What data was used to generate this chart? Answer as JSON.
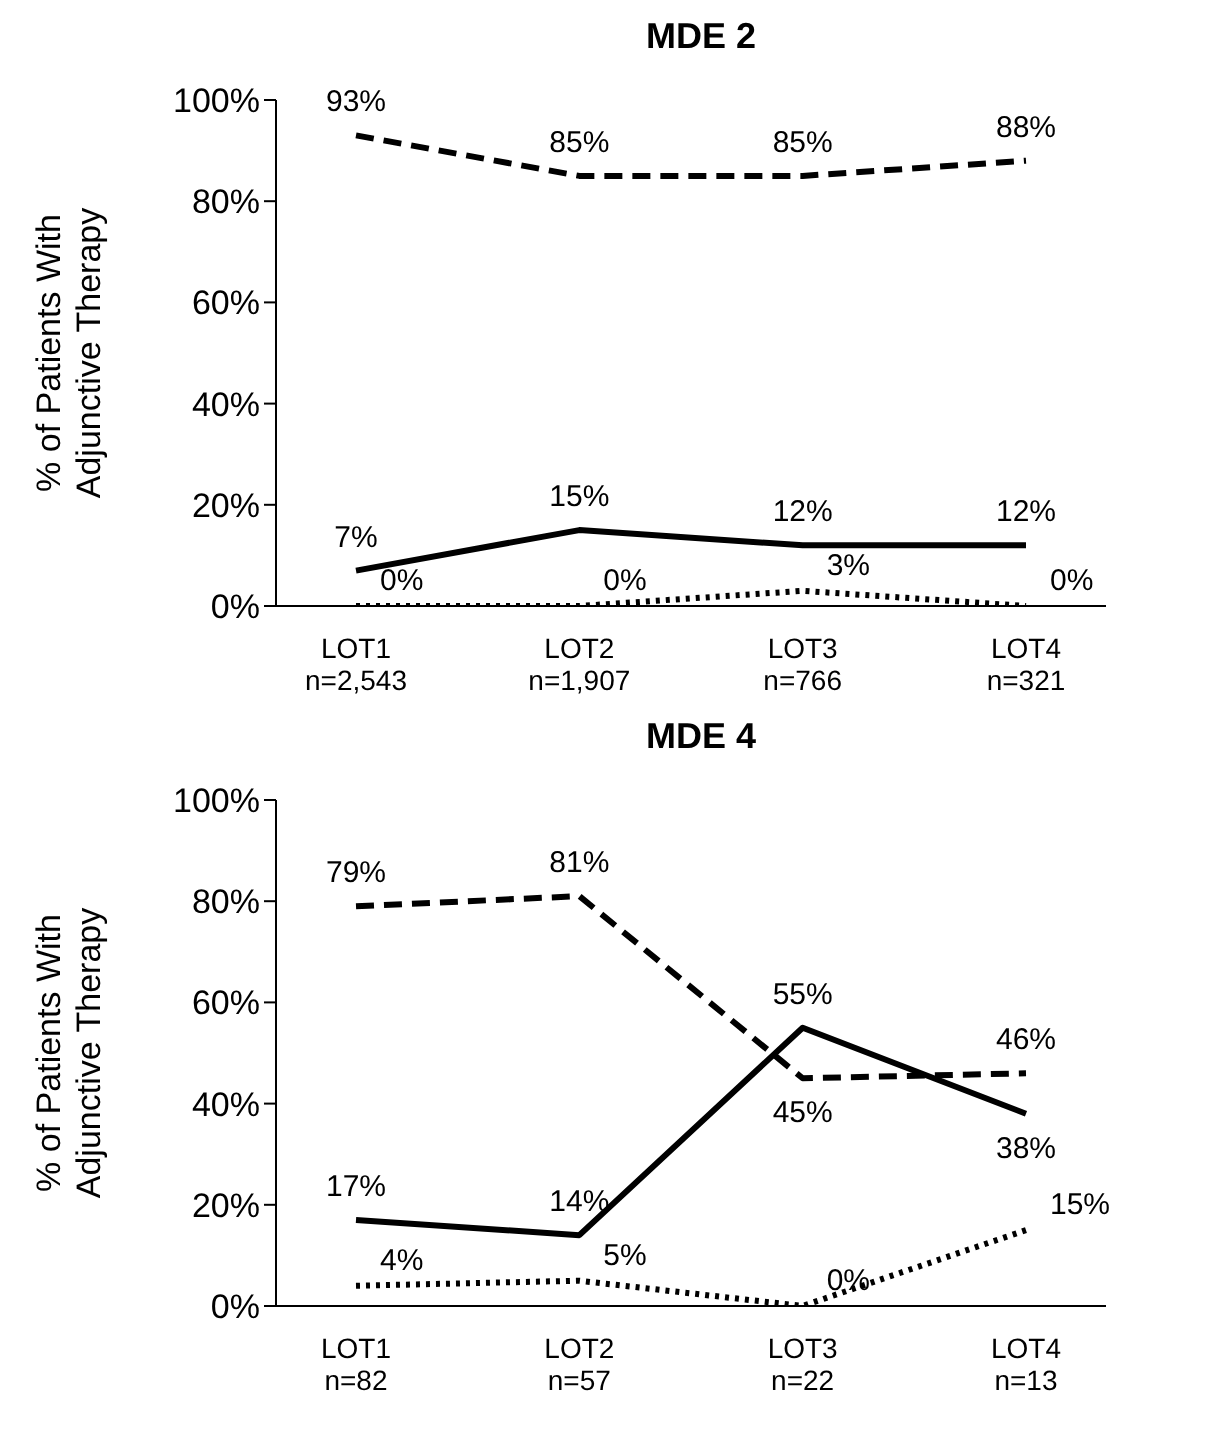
{
  "chart_data": [
    {
      "type": "line",
      "title": "MDE 2",
      "ylabel": "% of Patients With Adjunctive Therapy",
      "categories": [
        "LOT1\nn=2,543",
        "LOT2\nn=1,907",
        "LOT3\nn=766",
        "LOT4\nn=321"
      ],
      "ylim": [
        0,
        100
      ],
      "yticks": [
        {
          "value": 0,
          "label": "0%"
        },
        {
          "value": 20,
          "label": "20%"
        },
        {
          "value": 40,
          "label": "40%"
        },
        {
          "value": 60,
          "label": "60%"
        },
        {
          "value": 80,
          "label": "80%"
        },
        {
          "value": 100,
          "label": "100%"
        }
      ],
      "grid": false,
      "legend": false,
      "marker": "none",
      "series": [
        {
          "color": "#000000",
          "line_style": "dashed",
          "values": [
            93,
            85,
            85,
            88
          ],
          "value_labels": [
            "93%",
            "85%",
            "85%",
            "88%"
          ]
        },
        {
          "color": "#000000",
          "line_style": "solid",
          "values": [
            7,
            15,
            12,
            12
          ],
          "value_labels": [
            "7%",
            "15%",
            "12%",
            "12%"
          ]
        },
        {
          "color": "#000000",
          "line_style": "dotted",
          "values": [
            0,
            0,
            3,
            0
          ],
          "value_labels": [
            "0%",
            "0%",
            "3%",
            "0%"
          ]
        }
      ]
    },
    {
      "type": "line",
      "title": "MDE 4",
      "ylabel": "% of Patients With Adjunctive Therapy",
      "categories": [
        "LOT1\nn=82",
        "LOT2\nn=57",
        "LOT3\nn=22",
        "LOT4\nn=13"
      ],
      "ylim": [
        0,
        100
      ],
      "yticks": [
        {
          "value": 0,
          "label": "0%"
        },
        {
          "value": 20,
          "label": "20%"
        },
        {
          "value": 40,
          "label": "40%"
        },
        {
          "value": 60,
          "label": "60%"
        },
        {
          "value": 80,
          "label": "80%"
        },
        {
          "value": 100,
          "label": "100%"
        }
      ],
      "grid": false,
      "legend": false,
      "marker": "none",
      "series": [
        {
          "color": "#000000",
          "line_style": "dashed",
          "values": [
            79,
            81,
            45,
            46
          ],
          "value_labels": [
            "79%",
            "81%",
            "45%",
            "46%"
          ]
        },
        {
          "color": "#000000",
          "line_style": "solid",
          "values": [
            17,
            14,
            55,
            38
          ],
          "value_labels": [
            "17%",
            "14%",
            "55%",
            "38%"
          ]
        },
        {
          "color": "#000000",
          "line_style": "dotted",
          "values": [
            4,
            5,
            0,
            15
          ],
          "value_labels": [
            "4%",
            "5%",
            "0%",
            "15%"
          ]
        }
      ]
    }
  ]
}
